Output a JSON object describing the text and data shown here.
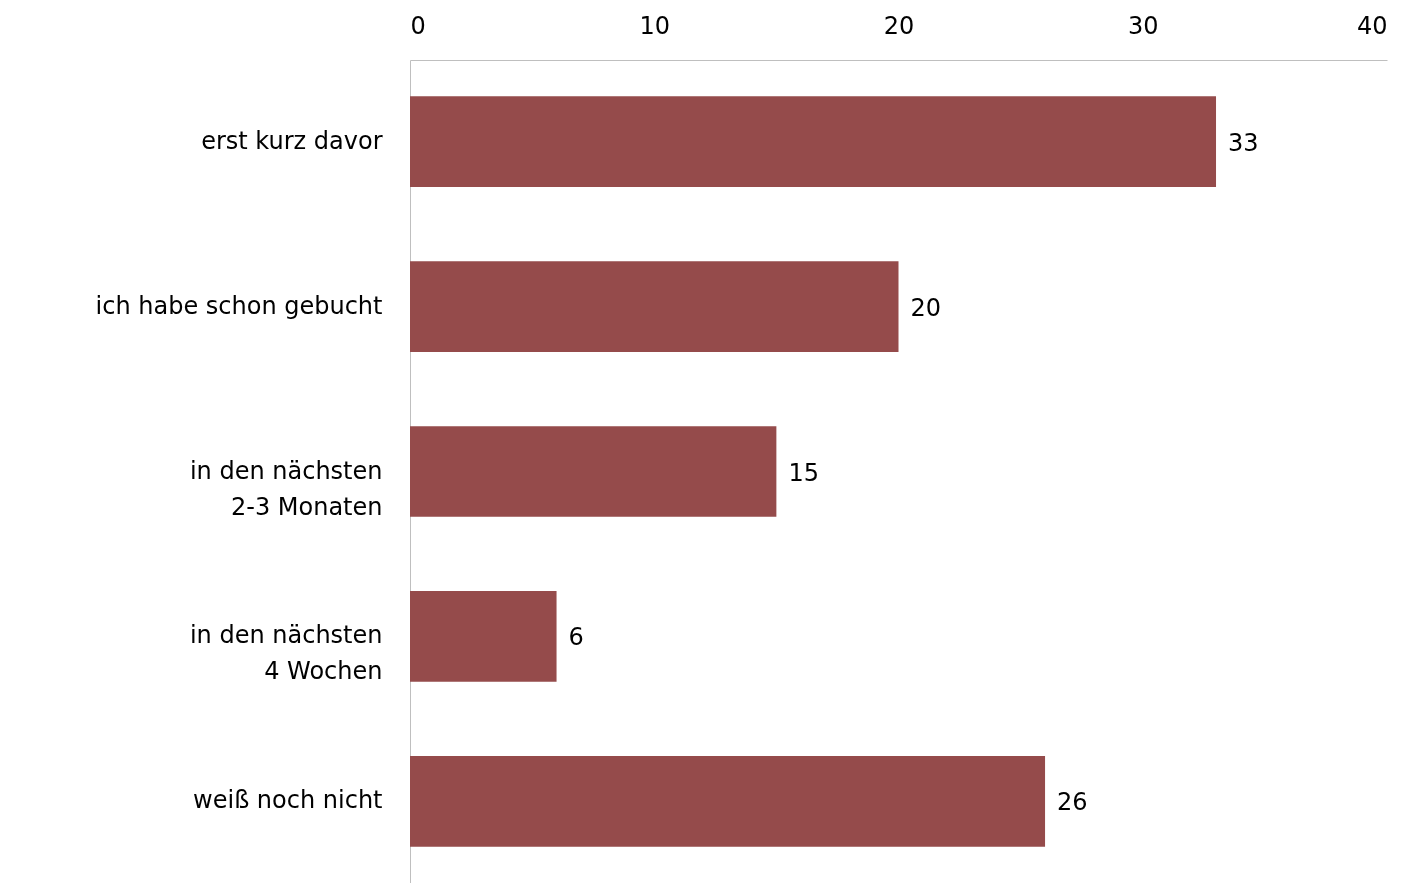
{
  "chart_data": {
    "type": "bar",
    "orientation": "horizontal",
    "categories": [
      "erst kurz davor",
      "ich habe schon gebucht",
      "in den nächsten\n2-3 Monaten",
      "in den nächsten\n4 Wochen",
      "weiß noch nicht"
    ],
    "values": [
      33,
      20,
      15,
      6,
      26
    ],
    "color": "#954b4b",
    "xlim": [
      0,
      40
    ],
    "xticks": [
      0,
      10,
      20,
      30,
      40
    ],
    "grid": false,
    "data_labels": true
  }
}
